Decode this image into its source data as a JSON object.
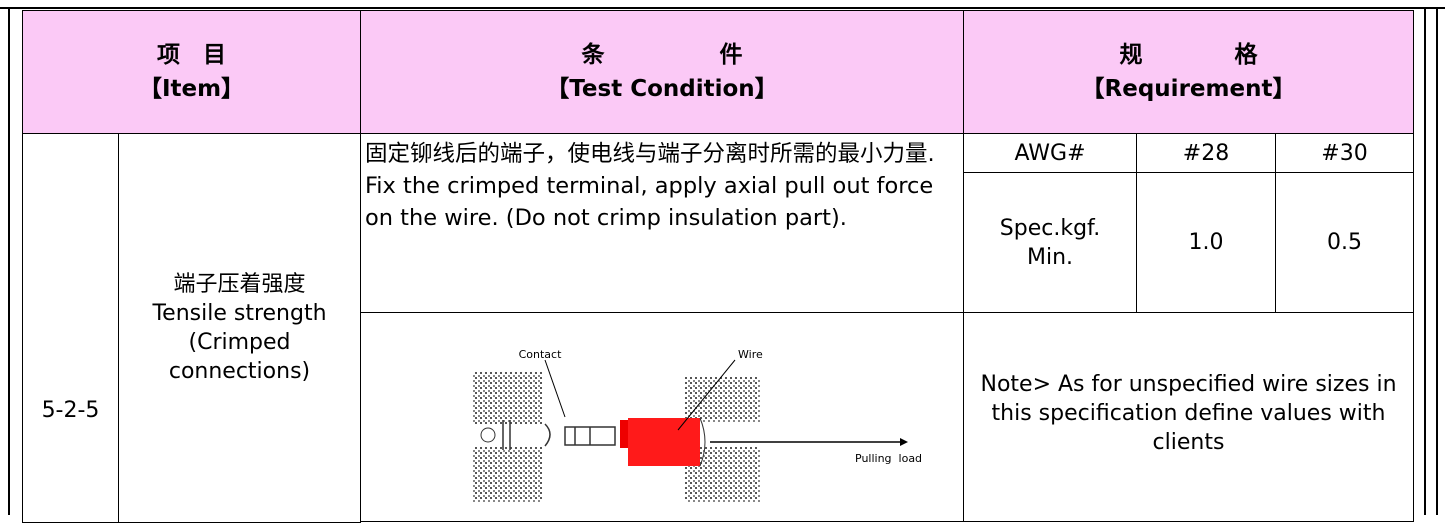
{
  "header": {
    "item": {
      "cn": "项　目",
      "en": "【Item】"
    },
    "condition": {
      "cn": "条　　　　　件",
      "en": "【Test Condition】"
    },
    "requirement": {
      "cn": "规　　　　格",
      "en": "【Requirement】"
    }
  },
  "row": {
    "id": "5-2-5",
    "name_cn": "端子压着强度",
    "name_en": "Tensile strength (Crimped connections)",
    "condition_cn": "固定铆线后的端子，使电线与端子分离时所需的最小力量.",
    "condition_en": "Fix the crimped terminal, apply axial pull out force on the wire. (Do not crimp insulation part).",
    "spec": {
      "header": [
        "AWG#",
        "#28",
        "#30"
      ],
      "row": [
        "Spec.kgf. Min.",
        "1.0",
        "0.5"
      ]
    },
    "diagram": {
      "contact": "Contact",
      "wire": "Wire",
      "load": "Pulling  load"
    },
    "note": "Note> As for unspecified wire sizes in this specification define values with clients"
  }
}
